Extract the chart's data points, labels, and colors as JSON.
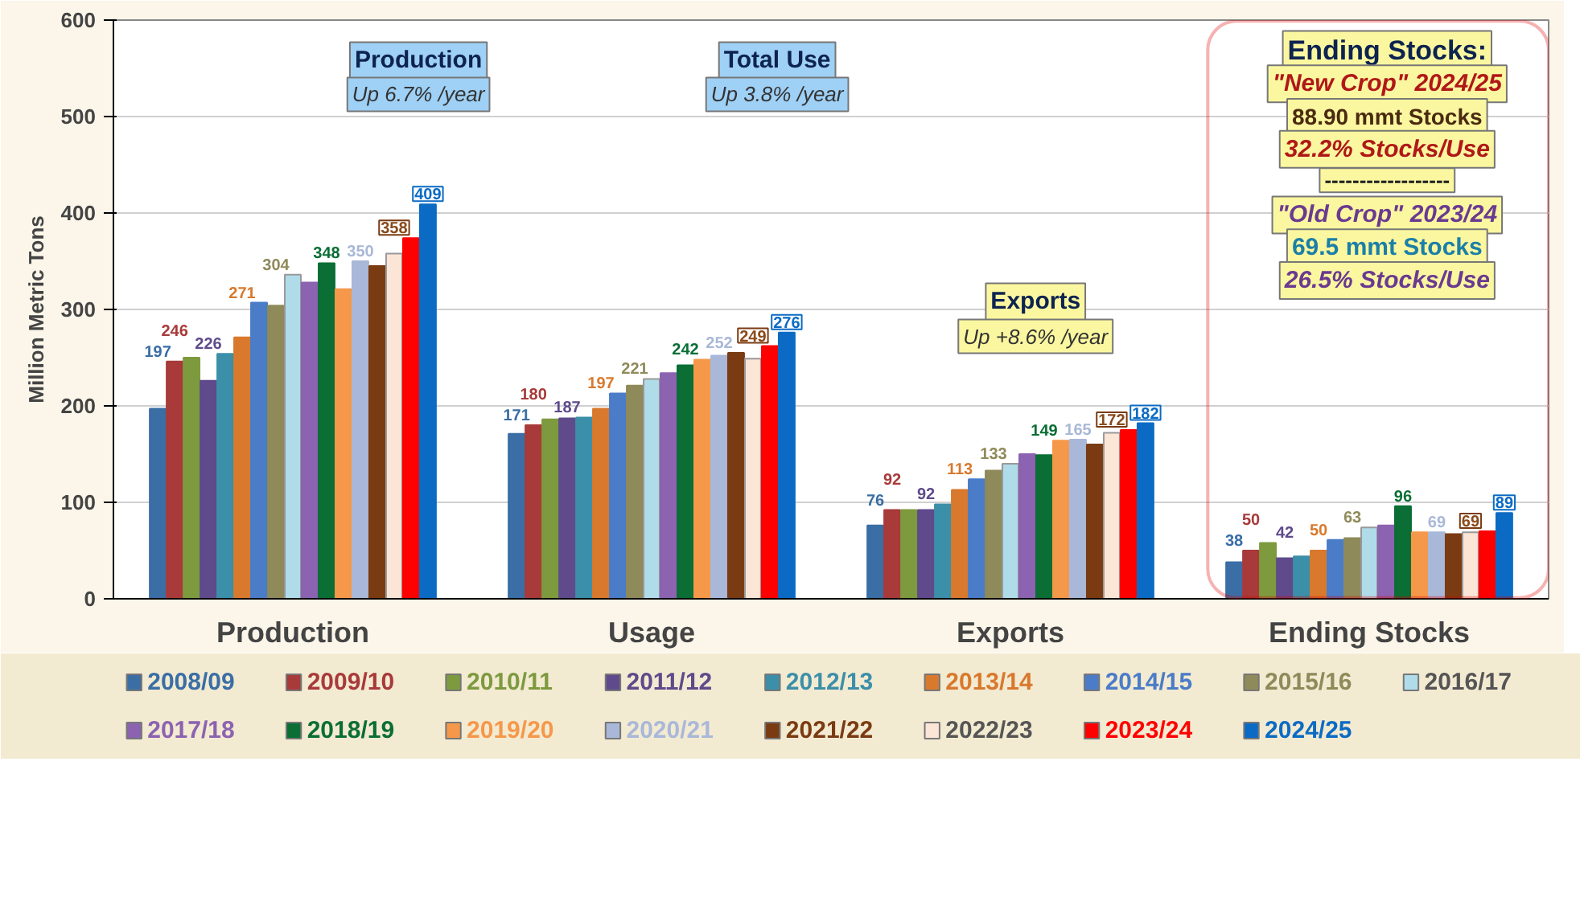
{
  "chart_data": {
    "type": "bar",
    "ylabel": "Million Metric Tons",
    "categories": [
      "Production",
      "Usage",
      "Exports",
      "Ending Stocks"
    ],
    "ylim": [
      0,
      600
    ],
    "yticks": [
      0,
      100,
      200,
      300,
      400,
      500,
      600
    ],
    "grid": "y",
    "legend": "bottom",
    "series": [
      {
        "name": "2008/09",
        "color": "#3a6ea5",
        "values": [
          197,
          171,
          76,
          38
        ],
        "value_labels": [
          "197",
          "171",
          "76",
          "38"
        ]
      },
      {
        "name": "2009/10",
        "color": "#a83a3a",
        "values": [
          246,
          180,
          92,
          50
        ],
        "value_labels": [
          "246",
          "180",
          "92",
          "50"
        ]
      },
      {
        "name": "2010/11",
        "color": "#7d9a3e",
        "values": [
          250,
          186,
          92,
          58
        ]
      },
      {
        "name": "2011/12",
        "color": "#5f4a8b",
        "values": [
          226,
          187,
          92,
          42
        ],
        "value_labels": [
          "226",
          "187",
          "92",
          "42"
        ]
      },
      {
        "name": "2012/13",
        "color": "#3c8fa8",
        "values": [
          254,
          188,
          98,
          44
        ]
      },
      {
        "name": "2013/14",
        "color": "#d8792d",
        "values": [
          271,
          197,
          113,
          50
        ],
        "value_labels": [
          "271",
          "197",
          "113",
          "50"
        ]
      },
      {
        "name": "2014/15",
        "color": "#4a7cc8",
        "values": [
          307,
          213,
          124,
          61
        ]
      },
      {
        "name": "2015/16",
        "color": "#8f8a5a",
        "values": [
          304,
          221,
          133,
          63
        ],
        "value_labels": [
          "304",
          "221",
          "133",
          "63"
        ]
      },
      {
        "name": "2016/17",
        "color": "#b0dcea",
        "values": [
          336,
          228,
          140,
          74
        ]
      },
      {
        "name": "2017/18",
        "color": "#8b63b0",
        "values": [
          328,
          234,
          150,
          76
        ]
      },
      {
        "name": "2018/19",
        "color": "#0a6e35",
        "values": [
          348,
          242,
          149,
          96
        ],
        "value_labels": [
          "348",
          "242",
          "149",
          "96"
        ]
      },
      {
        "name": "2019/20",
        "color": "#f5984a",
        "values": [
          321,
          248,
          164,
          69
        ]
      },
      {
        "name": "2020/21",
        "color": "#a9b8d8",
        "values": [
          350,
          252,
          165,
          69
        ],
        "value_labels": [
          "350",
          "252",
          "165",
          "69"
        ]
      },
      {
        "name": "2021/22",
        "color": "#7a3b12",
        "values": [
          345,
          255,
          160,
          67
        ]
      },
      {
        "name": "2022/23",
        "color": "#fbe5d6",
        "values": [
          358,
          249,
          172,
          69
        ],
        "value_labels": [
          "358",
          "249",
          "172",
          "69"
        ]
      },
      {
        "name": "2023/24",
        "color": "#ff0000",
        "values": [
          374,
          262,
          175,
          70
        ]
      },
      {
        "name": "2024/25",
        "color": "#0b6bc4",
        "values": [
          409,
          276,
          182,
          89
        ],
        "value_labels": [
          "409",
          "276",
          "182",
          "89"
        ]
      }
    ],
    "annotations": [
      "Production",
      "Up 6.7% /year",
      "Total Use",
      "Up 3.8% /year",
      "Exports",
      "Up +8.6% /year",
      "Ending Stocks:",
      "\"New Crop\" 2024/25",
      "88.90 mmt Stocks",
      "32.2% Stocks/Use",
      "------------------",
      "\"Old Crop\" 2023/24",
      "69.5 mmt Stocks",
      "26.5% Stocks/Use"
    ]
  }
}
